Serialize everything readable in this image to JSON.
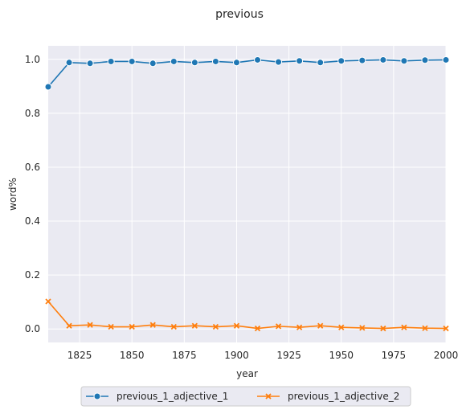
{
  "chart_data": {
    "type": "line",
    "title": "previous",
    "xlabel": "year",
    "ylabel": "word%",
    "xlim": [
      1810,
      2000
    ],
    "ylim": [
      -0.05,
      1.05
    ],
    "xticks": [
      1825,
      1850,
      1875,
      1900,
      1925,
      1950,
      1975,
      2000
    ],
    "yticks": [
      0.0,
      0.2,
      0.4,
      0.6,
      0.8,
      1.0
    ],
    "xtick_labels": [
      "1825",
      "1850",
      "1875",
      "1900",
      "1925",
      "1950",
      "1975",
      "2000"
    ],
    "ytick_labels": [
      "0.0",
      "0.2",
      "0.4",
      "0.6",
      "0.8",
      "1.0"
    ],
    "grid": true,
    "legend_position": "below",
    "x": [
      1810,
      1820,
      1830,
      1840,
      1850,
      1860,
      1870,
      1880,
      1890,
      1900,
      1910,
      1920,
      1930,
      1940,
      1950,
      1960,
      1970,
      1980,
      1990,
      2000
    ],
    "series": [
      {
        "name": "previous_1_adjective_1",
        "color": "#1f77b4",
        "marker": "circle",
        "values": [
          0.898,
          0.988,
          0.985,
          0.992,
          0.992,
          0.985,
          0.992,
          0.988,
          0.992,
          0.988,
          0.998,
          0.99,
          0.994,
          0.988,
          0.994,
          0.996,
          0.998,
          0.994,
          0.997,
          0.998
        ]
      },
      {
        "name": "previous_1_adjective_2",
        "color": "#ff7f0e",
        "marker": "x",
        "values": [
          0.102,
          0.012,
          0.015,
          0.008,
          0.008,
          0.015,
          0.008,
          0.012,
          0.008,
          0.012,
          0.002,
          0.01,
          0.006,
          0.012,
          0.006,
          0.004,
          0.002,
          0.006,
          0.003,
          0.002
        ]
      }
    ]
  }
}
